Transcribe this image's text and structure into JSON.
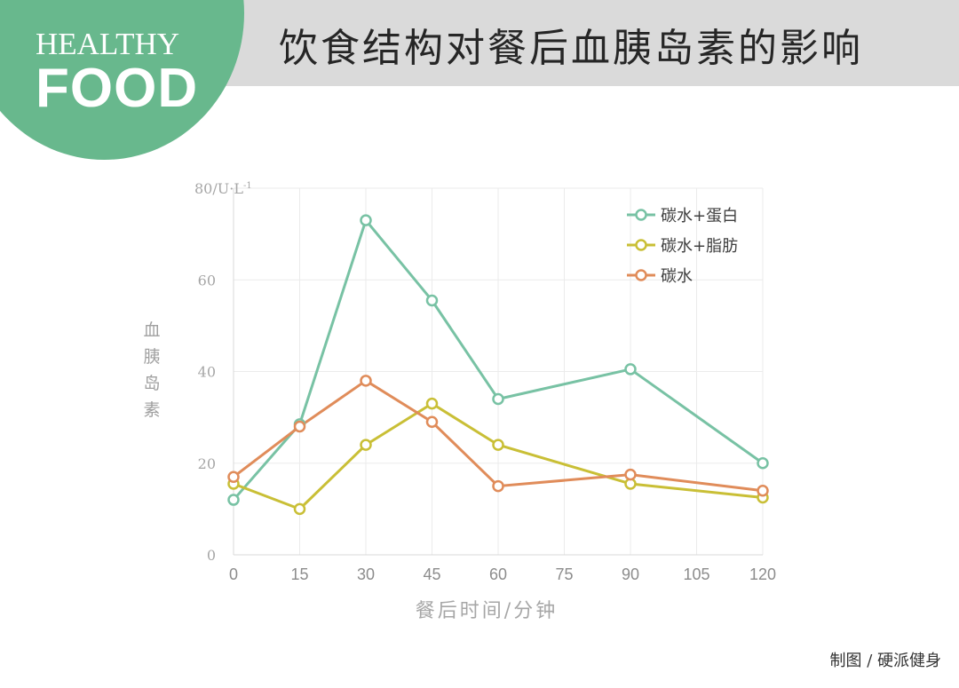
{
  "header": {
    "logo_line1": "HEALTHY",
    "logo_line2": "FOOD",
    "title": "饮食结构对餐后血胰岛素的影响",
    "background_color": "#dadada",
    "logo_color": "#68b88d"
  },
  "credit": "制图 / 硬派健身",
  "chart_data": {
    "type": "line",
    "title": "饮食结构对餐后血胰岛素的影响",
    "xlabel": "餐后时间/分钟",
    "ylabel": "血胰岛素",
    "y_unit": "80/U·L",
    "y_unit_sup": "-1",
    "xlim": [
      0,
      120
    ],
    "ylim": [
      0,
      80
    ],
    "x_ticks": [
      0,
      15,
      30,
      45,
      60,
      75,
      90,
      105,
      120
    ],
    "y_ticks": [
      0,
      20,
      40,
      60
    ],
    "grid": true,
    "legend_position": "top-right",
    "series": [
      {
        "name": "碳水+蛋白",
        "color": "#78c2a4",
        "x": [
          0,
          15,
          30,
          45,
          60,
          90,
          120
        ],
        "y": [
          12,
          28.5,
          73,
          55.5,
          34,
          40.5,
          20
        ]
      },
      {
        "name": "碳水+脂肪",
        "color": "#c9bf36",
        "x": [
          0,
          15,
          30,
          45,
          60,
          90,
          120
        ],
        "y": [
          15.5,
          10,
          24,
          33,
          24,
          15.5,
          12.5
        ]
      },
      {
        "name": "碳水",
        "color": "#e08c5a",
        "x": [
          0,
          15,
          30,
          45,
          60,
          90,
          120
        ],
        "y": [
          17,
          28,
          38,
          29,
          15,
          17.5,
          14
        ]
      }
    ]
  }
}
